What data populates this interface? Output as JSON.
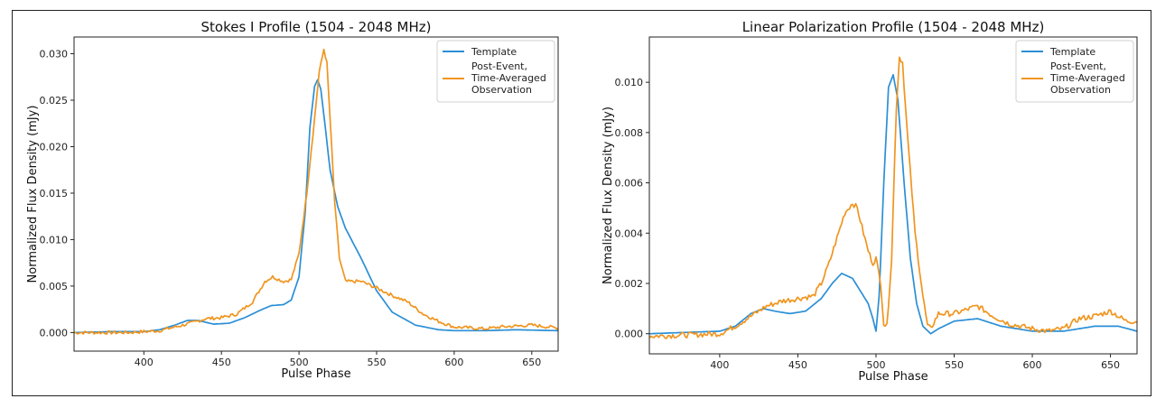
{
  "colors": {
    "template": "#2b8fd6",
    "observation": "#f0951f"
  },
  "chart_data": [
    {
      "type": "line",
      "title": "Stokes I Profile (1504 - 2048 MHz)",
      "xlabel": "Pulse Phase",
      "ylabel": "Normalized Flux Density (mJy)",
      "xlim": [
        355,
        667
      ],
      "ylim": [
        -0.002,
        0.0318
      ],
      "xticks": [
        400,
        450,
        500,
        550,
        600,
        650
      ],
      "yticks": [
        0.0,
        0.005,
        0.01,
        0.015,
        0.02,
        0.025,
        0.03
      ],
      "ytick_labels": [
        "0.000",
        "0.005",
        "0.010",
        "0.015",
        "0.020",
        "0.025",
        "0.030"
      ],
      "legend": {
        "location": "top-right",
        "entries": [
          "Template",
          "Post-Event,\nTime-Averaged\nObservation"
        ]
      },
      "series": [
        {
          "name": "Template",
          "color_key": "template",
          "x": [
            355,
            380,
            400,
            410,
            420,
            428,
            435,
            445,
            455,
            465,
            475,
            482,
            490,
            495,
            500,
            504,
            507,
            510,
            512,
            514,
            517,
            520,
            525,
            530,
            540,
            550,
            560,
            575,
            590,
            600,
            620,
            640,
            667
          ],
          "y": [
            0.0,
            0.0001,
            0.0001,
            0.0003,
            0.0008,
            0.0013,
            0.0013,
            0.0009,
            0.001,
            0.0016,
            0.0024,
            0.0029,
            0.003,
            0.0035,
            0.006,
            0.013,
            0.022,
            0.0265,
            0.0272,
            0.0262,
            0.022,
            0.0175,
            0.0135,
            0.0112,
            0.008,
            0.0045,
            0.0022,
            0.0008,
            0.0003,
            0.0002,
            0.0002,
            0.0003,
            0.0002
          ]
        },
        {
          "name": "Post-Event,\nTime-Averaged\nObservation",
          "color_key": "observation",
          "noise": 0.00018,
          "x": [
            355,
            390,
            410,
            420,
            430,
            440,
            450,
            460,
            470,
            478,
            483,
            490,
            495,
            500,
            505,
            510,
            513,
            516,
            518,
            520,
            523,
            526,
            530,
            535,
            540,
            550,
            560,
            570,
            580,
            590,
            600,
            610,
            620,
            630,
            650,
            667
          ],
          "y": [
            0.0,
            0.0,
            0.0002,
            0.0006,
            0.001,
            0.0015,
            0.0016,
            0.002,
            0.0033,
            0.0055,
            0.006,
            0.0055,
            0.0057,
            0.0085,
            0.015,
            0.023,
            0.028,
            0.0305,
            0.029,
            0.023,
            0.014,
            0.008,
            0.0055,
            0.0055,
            0.0055,
            0.0048,
            0.004,
            0.0033,
            0.002,
            0.0012,
            0.0006,
            0.0005,
            0.0004,
            0.0006,
            0.0008,
            0.0005
          ]
        }
      ]
    },
    {
      "type": "line",
      "title": "Linear Polarization Profile (1504 - 2048 MHz)",
      "xlabel": "Pulse Phase",
      "ylabel": "Normalized Flux Density (mJy)",
      "xlim": [
        355,
        667
      ],
      "ylim": [
        -0.0008,
        0.0118
      ],
      "xticks": [
        400,
        450,
        500,
        550,
        600,
        650
      ],
      "yticks": [
        0.0,
        0.002,
        0.004,
        0.006,
        0.008,
        0.01
      ],
      "ytick_labels": [
        "0.000",
        "0.002",
        "0.004",
        "0.006",
        "0.008",
        "0.010"
      ],
      "legend": {
        "location": "top-right",
        "entries": [
          "Template",
          "Post-Event,\nTime-Averaged\nObservation"
        ]
      },
      "series": [
        {
          "name": "Template",
          "color_key": "template",
          "x": [
            355,
            400,
            410,
            420,
            428,
            435,
            445,
            455,
            465,
            472,
            478,
            485,
            490,
            495,
            498,
            500,
            502,
            505,
            508,
            511,
            514,
            518,
            522,
            526,
            530,
            535,
            540,
            550,
            565,
            580,
            600,
            620,
            640,
            655,
            667
          ],
          "y": [
            0.0,
            0.0001,
            0.0003,
            0.0008,
            0.001,
            0.0009,
            0.0008,
            0.0009,
            0.0014,
            0.002,
            0.0024,
            0.0022,
            0.0017,
            0.0012,
            0.0006,
            0.0001,
            0.0015,
            0.006,
            0.0098,
            0.0103,
            0.0093,
            0.006,
            0.003,
            0.0012,
            0.0003,
            0.0,
            0.0002,
            0.0005,
            0.0006,
            0.0003,
            0.0001,
            0.0001,
            0.0003,
            0.0003,
            0.0001
          ]
        },
        {
          "name": "Post-Event,\nTime-Averaged\nObservation",
          "color_key": "observation",
          "noise": 0.00011,
          "x": [
            355,
            400,
            410,
            420,
            430,
            440,
            450,
            460,
            465,
            470,
            475,
            480,
            485,
            488,
            492,
            495,
            498,
            500,
            503,
            505,
            507,
            510,
            513,
            515,
            517,
            520,
            525,
            530,
            533,
            535,
            540,
            550,
            560,
            565,
            575,
            585,
            600,
            610,
            620,
            630,
            640,
            650,
            660,
            667
          ],
          "y": [
            -0.0001,
            0.0,
            0.0003,
            0.0007,
            0.0011,
            0.0013,
            0.0014,
            0.0015,
            0.002,
            0.0028,
            0.0038,
            0.0048,
            0.0052,
            0.005,
            0.004,
            0.0033,
            0.0028,
            0.003,
            0.002,
            0.0004,
            0.0003,
            0.003,
            0.009,
            0.011,
            0.0108,
            0.008,
            0.004,
            0.0015,
            0.0003,
            0.0002,
            0.0008,
            0.0008,
            0.001,
            0.0011,
            0.0007,
            0.0004,
            0.0002,
            0.0001,
            0.0002,
            0.0006,
            0.0007,
            0.0009,
            0.0005,
            0.0005
          ]
        }
      ]
    }
  ]
}
